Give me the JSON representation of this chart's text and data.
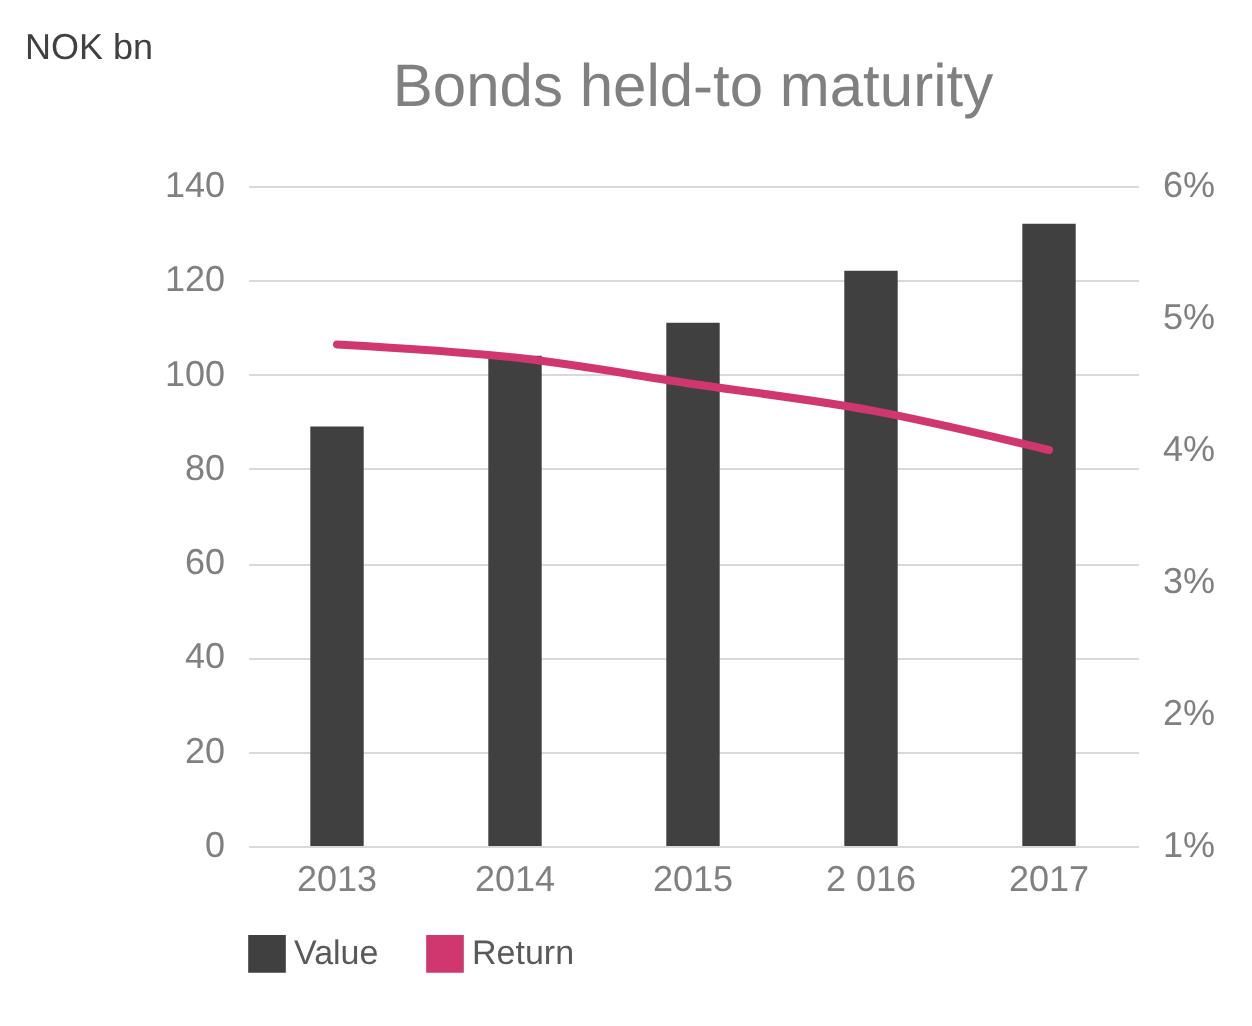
{
  "chart_data": {
    "type": "bar",
    "title": "Bonds held-to maturity",
    "ylabel": "NOK bn",
    "categories": [
      "2013",
      "2014",
      "2015",
      "2 016",
      "2017"
    ],
    "series": [
      {
        "name": "Value",
        "color": "#404040",
        "values": [
          89,
          104,
          111,
          122,
          132
        ]
      },
      {
        "name": "Return",
        "type": "line",
        "axis": "y2",
        "color": "#d0376f",
        "values": [
          4.8,
          4.7,
          4.5,
          4.3,
          4.0
        ]
      }
    ],
    "ylim": [
      0,
      140
    ],
    "yticks": [
      0,
      20,
      40,
      60,
      80,
      100,
      120,
      140
    ],
    "y2lim": [
      1,
      6
    ],
    "y2ticks": [
      {
        "value": 1,
        "label": "1%"
      },
      {
        "value": 2,
        "label": "2%"
      },
      {
        "value": 3,
        "label": "3%"
      },
      {
        "value": 4,
        "label": "4%"
      },
      {
        "value": 5,
        "label": "5%"
      },
      {
        "value": 6,
        "label": "6%"
      }
    ],
    "grid": "y",
    "legend": "bottom"
  }
}
